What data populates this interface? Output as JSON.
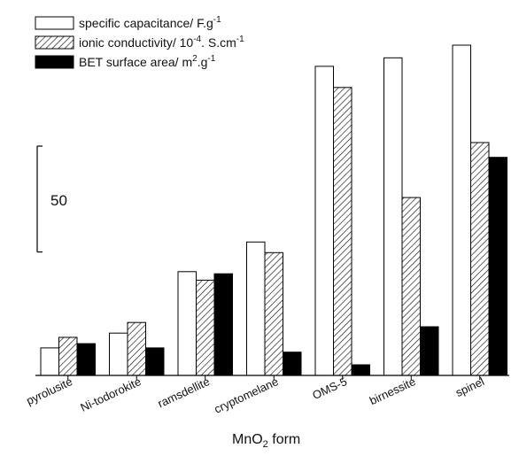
{
  "chart_data": {
    "type": "bar",
    "xlabel_main": "MnO",
    "xlabel_sub": "2",
    "xlabel_rest": " form",
    "categories": [
      "pyrolusite",
      "Ni-todorokite",
      "ramsdellite",
      "cryptomelane",
      "OMS-5",
      "birnessite",
      "spinel"
    ],
    "series": [
      {
        "name": "specific capacitance/ F.g",
        "sup": "-1",
        "pattern": "white",
        "values": [
          9,
          16,
          45,
          59,
          142,
          146,
          152
        ]
      },
      {
        "name": "ionic conductivity/ 10",
        "sup": "-4",
        "suffix": ". S.cm",
        "sup2": "-1",
        "pattern": "hatched",
        "values": [
          14,
          21,
          41,
          54,
          132,
          80,
          106
        ]
      },
      {
        "name": "BET surface area/ m",
        "sup": "2",
        "suffix": ".g",
        "sup2": "-1",
        "pattern": "black",
        "values": [
          11,
          9,
          44,
          7,
          1,
          19,
          99
        ]
      }
    ],
    "scale_bar": {
      "label": "50",
      "value": 50
    },
    "ylim": [
      -4,
      157
    ],
    "grid": false,
    "legend": "top-left"
  }
}
